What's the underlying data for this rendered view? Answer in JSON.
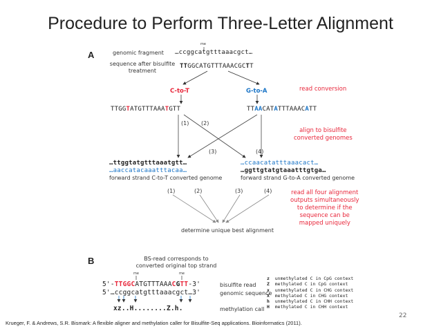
{
  "title": "Procedure to Perform Three-Letter Alignment",
  "panel_a": {
    "label": "A",
    "genomic_fragment_label": "genomic fragment",
    "me_mark": "me",
    "genomic_seq": "…ccggcatgtttaaacgct…",
    "bisulfite_label_1": "sequence after bisulfite",
    "bisulfite_label_2": "treatment",
    "bisulfite_seq_prefix": "TT",
    "bisulfite_seq_mid": "GGCATGTTTAAACG",
    "bisulfite_seq_c": "C",
    "bisulfite_seq_end": "T",
    "bisulfite_seq_t": "T",
    "ctot_label": "C-to-T",
    "gtoa_label": "G-to-A",
    "read_conversion": "read conversion",
    "ctot_seq_1": "TTGG",
    "ctot_seq_2": "T",
    "ctot_seq_3": "ATGTTTAAA",
    "ctot_seq_4": "T",
    "ctot_seq_5": "GTT",
    "gtoa_seq_1": "TT",
    "gtoa_seq_2": "AA",
    "gtoa_seq_3": "CAT",
    "gtoa_seq_4": "A",
    "gtoa_seq_5": "TTTAAAC",
    "gtoa_seq_6": "A",
    "gtoa_seq_7": "TT",
    "paths": [
      "(1)",
      "(2)",
      "(3)",
      "(4)"
    ],
    "align_note_1": "align to bisulfite",
    "align_note_2": "converted genomes",
    "ref_ct_top": "…ttggtatgtttaaatgtt…",
    "ref_ct_bottom": "…aaccatacaaatttacaa…",
    "ref_ct_caption": "forward strand C-to-T converted genome",
    "ref_ga_top": "…ccaacatatttaaacact…",
    "ref_ga_bottom": "…ggttgtatgtaaatttgtga…",
    "ref_ga_caption": "forward strand G-to-A converted genome",
    "read_all_note_1": "read all four alignment",
    "read_all_note_2": "outputs simultaneously",
    "read_all_note_3": "to determine if the",
    "read_all_note_4": "sequence can be",
    "read_all_note_5": "mapped uniquely",
    "determine_label": "determine unique best alignment"
  },
  "panel_b": {
    "label": "B",
    "heading_1": "BS-read corresponds to",
    "heading_2": "converted original top strand",
    "me_mark": "me",
    "read_prefix": "5'-",
    "read_seq_1": "TTGG",
    "read_seq_2": "C",
    "read_seq_3": "ATGTTTAAA",
    "read_seq_4": "C",
    "read_seq_5": "G",
    "read_seq_6": "TT",
    "read_suffix": "-3'",
    "read_label": "bisulfite read",
    "genomic_prefix": "5'…",
    "genomic_seq": "ccggcatgtttaaacgct",
    "genomic_suffix": "…3'",
    "genomic_label": "genomic sequence",
    "call_seq": "xz..H........Z.h.",
    "call_label": "methylation call",
    "legend": [
      {
        "code": "z",
        "text": "unmethylated C in CpG context"
      },
      {
        "code": "Z",
        "text": "methylated C in CpG context"
      },
      {
        "code": "x",
        "text": "unmethylated C in CHG context"
      },
      {
        "code": "X",
        "text": "methylated C in CHG context"
      },
      {
        "code": "h",
        "text": "unmethylated C in CHH context"
      },
      {
        "code": "H",
        "text": "methylated C in CHH context"
      }
    ]
  },
  "page_number": "22",
  "citation": "Krueger, F. & Andrews, S.R. Bismark: A flexible aligner and methylation caller for Bisulfite-Seq applications. Bioinformatics (2011)."
}
